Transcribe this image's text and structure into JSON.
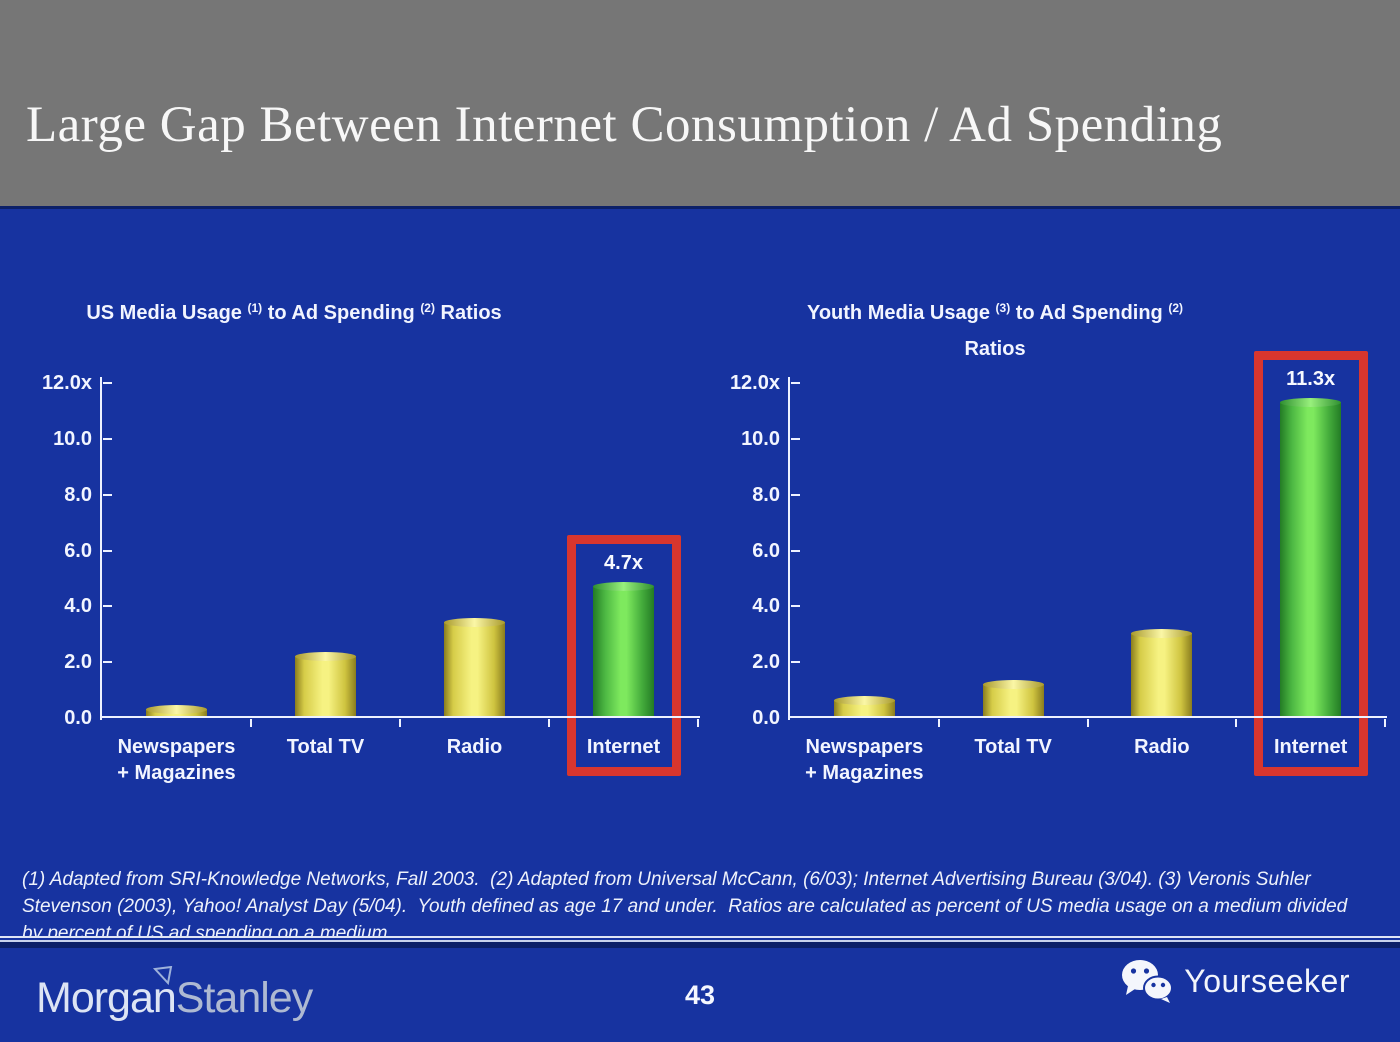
{
  "header": {
    "title": "Large Gap Between Internet Consumption / Ad Spending"
  },
  "colors": {
    "background_blue": "#1733a0",
    "header_gray": "#767676",
    "bar_yellow": "#f6f282",
    "bar_green": "#7ee95e",
    "highlight_red": "#d8362e",
    "axis_white": "#eef2ff",
    "separator_dark_navy": "#0c2068"
  },
  "chart_data": [
    {
      "type": "bar",
      "title": "US Media Usage (1) to Ad Spending (2) Ratios",
      "title_display": {
        "pre": "US Media Usage",
        "sup1": "(1)",
        "mid": "to Ad Spending",
        "sup2": "(2)",
        "tail": "Ratios",
        "line2": ""
      },
      "categories": [
        "Newspapers\n+ Magazines",
        "Total TV",
        "Radio",
        "Internet"
      ],
      "values": [
        0.3,
        2.2,
        3.4,
        4.7
      ],
      "bar_labels": [
        "",
        "",
        "",
        "4.7x"
      ],
      "bar_colors": [
        "yellow",
        "yellow",
        "yellow",
        "green"
      ],
      "highlight_index": 3,
      "xlabel": "",
      "ylabel": "",
      "ylim": [
        0,
        12
      ],
      "yticks": [
        0,
        2,
        4,
        6,
        8,
        10,
        12
      ],
      "ytick_labels": [
        "0.0",
        "2.0",
        "4.0",
        "6.0",
        "8.0",
        "10.0",
        "12.0x"
      ],
      "grid": "off",
      "legend": "none"
    },
    {
      "type": "bar",
      "title": "Youth Media Usage (3) to Ad Spending (2) Ratios",
      "title_display": {
        "pre": "Youth Media Usage",
        "sup1": "(3)",
        "mid": "to Ad Spending",
        "sup2": "(2)",
        "tail": "",
        "line2": "Ratios"
      },
      "categories": [
        "Newspapers\n+ Magazines",
        "Total TV",
        "Radio",
        "Internet"
      ],
      "values": [
        0.6,
        1.2,
        3.0,
        11.3
      ],
      "bar_labels": [
        "",
        "",
        "",
        "11.3x"
      ],
      "bar_colors": [
        "yellow",
        "yellow",
        "yellow",
        "green"
      ],
      "highlight_index": 3,
      "xlabel": "",
      "ylabel": "",
      "ylim": [
        0,
        12
      ],
      "yticks": [
        0,
        2,
        4,
        6,
        8,
        10,
        12
      ],
      "ytick_labels": [
        "0.0",
        "2.0",
        "4.0",
        "6.0",
        "8.0",
        "10.0",
        "12.0x"
      ],
      "grid": "off",
      "legend": "none"
    }
  ],
  "footnote": {
    "text": "(1) Adapted from SRI-Knowledge Networks, Fall 2003.  (2) Adapted from Universal McCann, (6/03); Internet Advertising Bureau (3/04). (3) Veronis Suhler\nStevenson (2003), Yahoo! Analyst Day (5/04).  Youth defined as age 17 and under.  Ratios are calculated as percent of US media usage on a medium divided\nby percent of US ad spending on a medium."
  },
  "footer": {
    "page_number": "43",
    "logo_morgan": "Morgan",
    "logo_stanley": "Stanley",
    "brand": "Yourseeker"
  }
}
